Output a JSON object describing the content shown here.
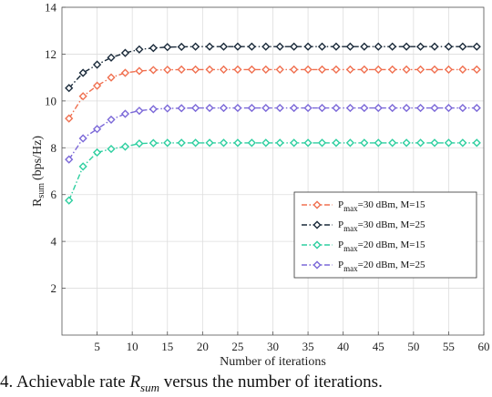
{
  "chart_data": {
    "type": "line",
    "xlabel": "Number of iterations",
    "ylabel": "R",
    "ylabel_sub": "sum",
    "ylabel_unit": "(bps/Hz)",
    "xlim": [
      0,
      60
    ],
    "ylim": [
      0,
      14
    ],
    "xticks": [
      5,
      10,
      15,
      20,
      25,
      30,
      35,
      40,
      45,
      50,
      55,
      60
    ],
    "yticks": [
      2,
      4,
      6,
      8,
      10,
      12,
      14
    ],
    "grid": true,
    "legend_position": "center-right",
    "x": [
      1,
      3,
      5,
      7,
      9,
      11,
      13,
      15,
      17,
      19,
      21,
      23,
      25,
      27,
      29,
      31,
      33,
      35,
      37,
      39,
      41,
      43,
      45,
      47,
      49,
      51,
      53,
      55,
      57,
      59
    ],
    "series": [
      {
        "name_main": "P",
        "name_sub": "max",
        "name_rest": "=30 dBm, M=15",
        "color": "#f07050",
        "values": [
          9.25,
          10.2,
          10.65,
          11.0,
          11.2,
          11.28,
          11.32,
          11.33,
          11.34,
          11.34,
          11.34,
          11.34,
          11.34,
          11.34,
          11.34,
          11.34,
          11.34,
          11.34,
          11.34,
          11.34,
          11.34,
          11.34,
          11.34,
          11.34,
          11.34,
          11.34,
          11.34,
          11.34,
          11.34,
          11.34
        ]
      },
      {
        "name_main": "P",
        "name_sub": "max",
        "name_rest": "=30 dBm, M=25",
        "color": "#1a2a3a",
        "values": [
          10.55,
          11.2,
          11.55,
          11.85,
          12.05,
          12.2,
          12.26,
          12.3,
          12.31,
          12.32,
          12.32,
          12.32,
          12.32,
          12.32,
          12.32,
          12.32,
          12.32,
          12.32,
          12.32,
          12.32,
          12.32,
          12.32,
          12.32,
          12.32,
          12.32,
          12.32,
          12.32,
          12.32,
          12.32,
          12.32
        ]
      },
      {
        "name_main": "P",
        "name_sub": "max",
        "name_rest": "=20 dBm, M=15",
        "color": "#2ecfa0",
        "values": [
          5.75,
          7.2,
          7.8,
          7.95,
          8.05,
          8.18,
          8.2,
          8.21,
          8.21,
          8.21,
          8.21,
          8.21,
          8.21,
          8.21,
          8.21,
          8.21,
          8.21,
          8.21,
          8.21,
          8.21,
          8.21,
          8.21,
          8.21,
          8.21,
          8.21,
          8.21,
          8.21,
          8.21,
          8.21,
          8.21
        ]
      },
      {
        "name_main": "P",
        "name_sub": "max",
        "name_rest": "=20 dBm, M=25",
        "color": "#7b68d8",
        "values": [
          7.5,
          8.4,
          8.8,
          9.2,
          9.45,
          9.58,
          9.65,
          9.68,
          9.69,
          9.7,
          9.7,
          9.7,
          9.7,
          9.7,
          9.7,
          9.7,
          9.7,
          9.7,
          9.7,
          9.7,
          9.7,
          9.7,
          9.7,
          9.7,
          9.7,
          9.7,
          9.7,
          9.7,
          9.7,
          9.7
        ]
      }
    ]
  },
  "caption": {
    "prefix": "4.  Achievable rate ",
    "math_main": "R",
    "math_sub": "sum",
    "suffix": " versus the number of iterations."
  }
}
